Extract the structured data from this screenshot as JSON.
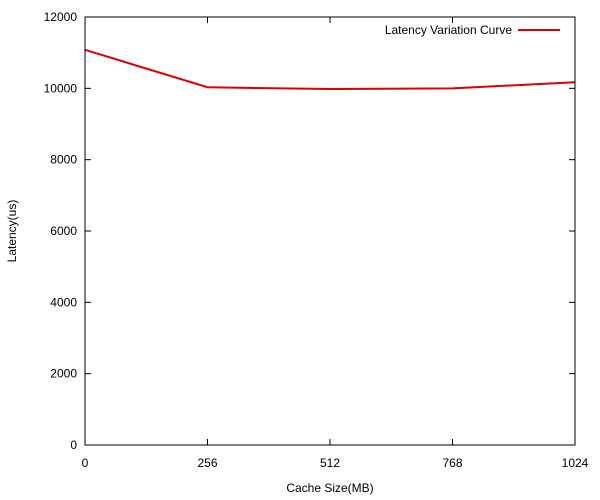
{
  "chart_data": {
    "type": "line",
    "title": "",
    "xlabel": "Cache Size(MB)",
    "ylabel": "Latency(us)",
    "xlim": [
      0,
      1024
    ],
    "ylim": [
      0,
      12000
    ],
    "xticks": [
      0,
      256,
      512,
      768,
      1024
    ],
    "yticks": [
      0,
      2000,
      4000,
      6000,
      8000,
      10000,
      12000
    ],
    "xtick_labels": [
      "0",
      "256",
      "512",
      "768",
      "1024"
    ],
    "ytick_labels": [
      "0",
      "2000",
      "4000",
      "6000",
      "8000",
      "10000",
      "12000"
    ],
    "grid": false,
    "legend_position": "top-right",
    "series": [
      {
        "name": "Latency Variation Curve",
        "color": "#dd0000",
        "x": [
          0,
          256,
          512,
          768,
          1024
        ],
        "y": [
          11080,
          10030,
          9980,
          10000,
          10170
        ]
      }
    ]
  }
}
